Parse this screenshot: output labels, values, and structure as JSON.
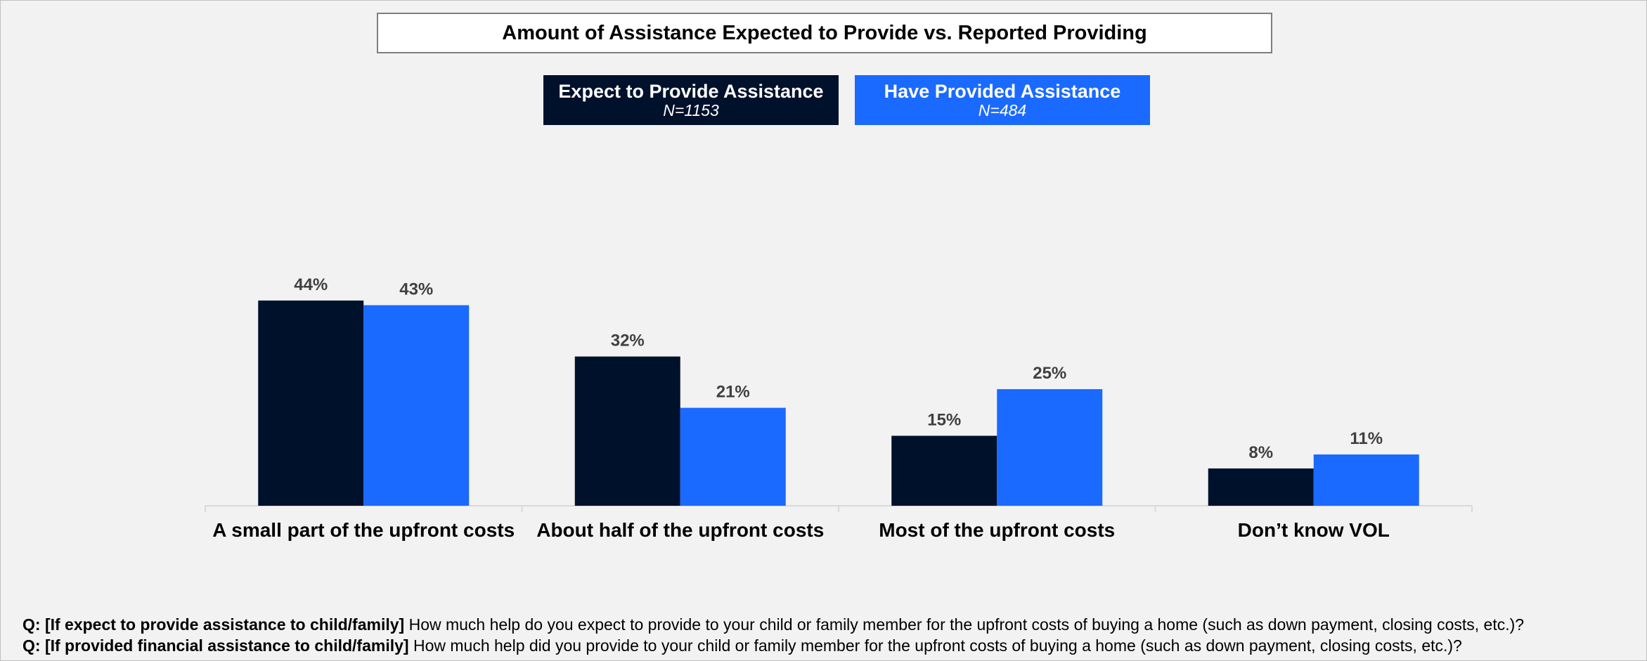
{
  "chart_data": {
    "type": "bar",
    "title": "Amount of Assistance Expected to Provide vs. Reported Providing",
    "categories": [
      "A small part of the upfront costs",
      "About half of the upfront costs",
      "Most of the upfront costs",
      "Don’t know VOL"
    ],
    "series": [
      {
        "name": "Expect to Provide Assistance",
        "n": "N=1153",
        "color": "#00112c",
        "values": [
          44,
          32,
          15,
          8
        ]
      },
      {
        "name": "Have Provided Assistance",
        "n": "N=484",
        "color": "#1a6aff",
        "values": [
          43,
          21,
          25,
          11
        ]
      }
    ],
    "value_suffix": "%",
    "ylim": [
      0,
      50
    ],
    "grid": false,
    "legend": "top"
  },
  "footnotes": [
    {
      "prefix": "Q: [If expect to provide assistance to child/family]",
      "text": " How much help do you expect to provide to your child or family member for the upfront costs of buying a home (such as down payment, closing costs, etc.)?"
    },
    {
      "prefix": "Q: [If provided financial assistance to child/family]",
      "text": " How much help did you provide to your child or family member for the upfront costs of buying a home (such as down payment, closing costs, etc.)?"
    }
  ]
}
